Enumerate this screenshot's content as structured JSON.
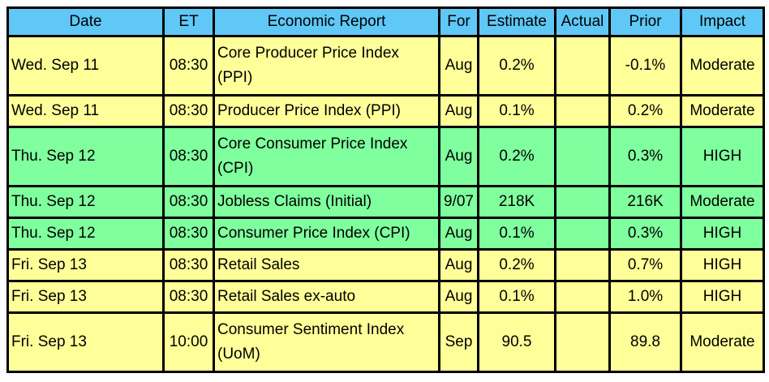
{
  "table": {
    "headers": [
      "Date",
      "ET",
      "Economic Report",
      "For",
      "Estimate",
      "Actual",
      "Prior",
      "Impact"
    ],
    "header_color": "#5fc8f7",
    "rows": [
      {
        "color": "#ffff99",
        "cells": [
          "Wed. Sep 11",
          "08:30",
          "Core Producer Price Index (PPI)",
          "Aug",
          "0.2%",
          null,
          "-0.1%",
          "Moderate"
        ]
      },
      {
        "color": "#ffff99",
        "cells": [
          "Wed. Sep 11",
          "08:30",
          "Producer Price Index (PPI)",
          "Aug",
          "0.1%",
          null,
          "0.2%",
          "Moderate"
        ]
      },
      {
        "color": "#80ff9e",
        "cells": [
          "Thu. Sep 12",
          "08:30",
          "Core Consumer Price Index (CPI)",
          "Aug",
          "0.2%",
          null,
          "0.3%",
          "HIGH"
        ]
      },
      {
        "color": "#80ff9e",
        "cells": [
          "Thu. Sep 12",
          "08:30",
          "Jobless Claims (Initial)",
          "9/07",
          "218K",
          null,
          "216K",
          "Moderate"
        ]
      },
      {
        "color": "#80ff9e",
        "cells": [
          "Thu. Sep 12",
          "08:30",
          "Consumer Price Index (CPI)",
          "Aug",
          "0.1%",
          null,
          "0.3%",
          "HIGH"
        ]
      },
      {
        "color": "#ffff99",
        "cells": [
          "Fri. Sep 13",
          "08:30",
          "Retail Sales",
          "Aug",
          "0.2%",
          null,
          "0.7%",
          "HIGH"
        ]
      },
      {
        "color": "#ffff99",
        "cells": [
          "Fri. Sep 13",
          "08:30",
          "Retail Sales ex-auto",
          "Aug",
          "0.1%",
          null,
          "1.0%",
          "HIGH"
        ]
      },
      {
        "color": "#ffff99",
        "cells": [
          "Fri. Sep 13",
          "10:00",
          "Consumer Sentiment Index (UoM)",
          "Sep",
          "90.5",
          null,
          "89.8",
          "Moderate"
        ]
      }
    ]
  }
}
